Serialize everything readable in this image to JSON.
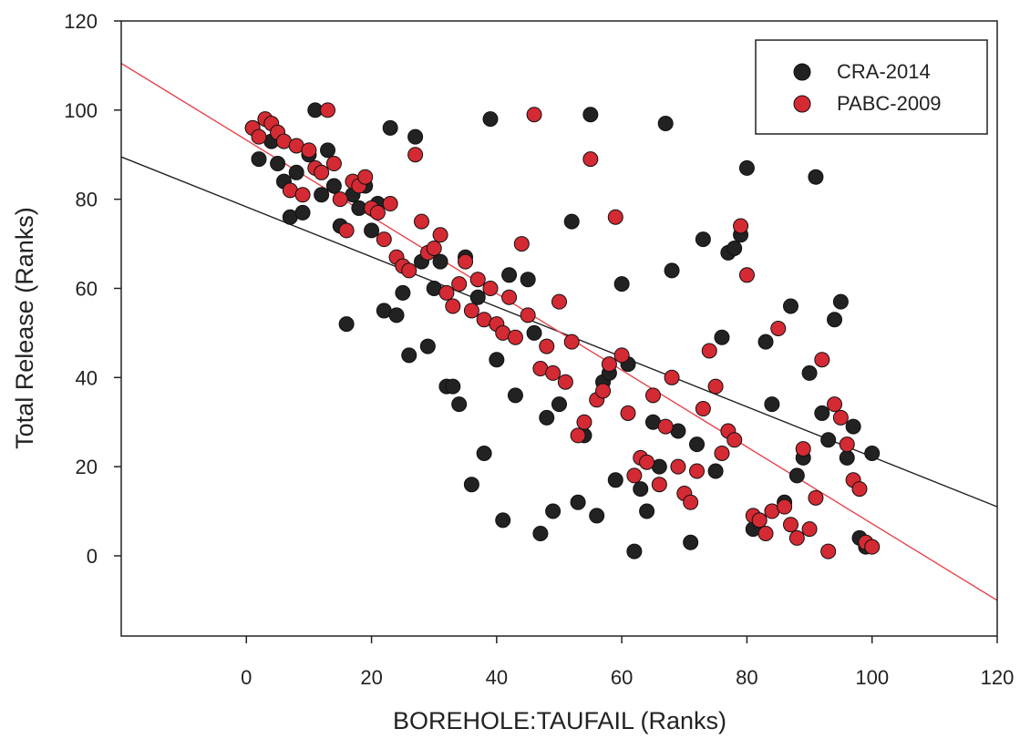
{
  "chart_data": {
    "type": "scatter",
    "xlabel": "BOREHOLE:TAUFAIL (Ranks)",
    "ylabel": "Total Release (Ranks)",
    "xlim": [
      -20,
      120
    ],
    "ylim": [
      -18,
      120
    ],
    "x_ticks": [
      0,
      20,
      40,
      60,
      80,
      100,
      120
    ],
    "y_ticks": [
      0,
      20,
      40,
      60,
      80,
      100,
      120
    ],
    "grid": false,
    "legend_position": "top-right",
    "series": [
      {
        "name": "CRA-2014",
        "color": "#222222",
        "points": [
          [
            1,
            96
          ],
          [
            2,
            89
          ],
          [
            4,
            93
          ],
          [
            5,
            88
          ],
          [
            6,
            84
          ],
          [
            7,
            76
          ],
          [
            8,
            86
          ],
          [
            9,
            77
          ],
          [
            10,
            90
          ],
          [
            11,
            100
          ],
          [
            12,
            81
          ],
          [
            13,
            91
          ],
          [
            14,
            83
          ],
          [
            15,
            74
          ],
          [
            16,
            52
          ],
          [
            17,
            81
          ],
          [
            18,
            78
          ],
          [
            19,
            83
          ],
          [
            20,
            73
          ],
          [
            21,
            79
          ],
          [
            22,
            55
          ],
          [
            23,
            96
          ],
          [
            24,
            54
          ],
          [
            25,
            59
          ],
          [
            26,
            45
          ],
          [
            27,
            94
          ],
          [
            28,
            66
          ],
          [
            29,
            47
          ],
          [
            30,
            60
          ],
          [
            31,
            66
          ],
          [
            32,
            38
          ],
          [
            33,
            38
          ],
          [
            34,
            34
          ],
          [
            35,
            67
          ],
          [
            36,
            16
          ],
          [
            37,
            58
          ],
          [
            38,
            23
          ],
          [
            39,
            98
          ],
          [
            40,
            44
          ],
          [
            41,
            8
          ],
          [
            42,
            63
          ],
          [
            43,
            36
          ],
          [
            45,
            62
          ],
          [
            46,
            50
          ],
          [
            47,
            5
          ],
          [
            48,
            31
          ],
          [
            49,
            10
          ],
          [
            50,
            34
          ],
          [
            52,
            75
          ],
          [
            53,
            12
          ],
          [
            54,
            27
          ],
          [
            55,
            99
          ],
          [
            56,
            9
          ],
          [
            57,
            39
          ],
          [
            58,
            41
          ],
          [
            59,
            17
          ],
          [
            60,
            61
          ],
          [
            61,
            43
          ],
          [
            62,
            1
          ],
          [
            63,
            15
          ],
          [
            64,
            10
          ],
          [
            65,
            30
          ],
          [
            66,
            20
          ],
          [
            67,
            97
          ],
          [
            68,
            64
          ],
          [
            69,
            28
          ],
          [
            71,
            3
          ],
          [
            72,
            25
          ],
          [
            73,
            71
          ],
          [
            75,
            19
          ],
          [
            76,
            49
          ],
          [
            77,
            68
          ],
          [
            78,
            69
          ],
          [
            79,
            72
          ],
          [
            80,
            87
          ],
          [
            81,
            6
          ],
          [
            82,
            8
          ],
          [
            83,
            48
          ],
          [
            84,
            34
          ],
          [
            86,
            12
          ],
          [
            87,
            56
          ],
          [
            88,
            18
          ],
          [
            89,
            22
          ],
          [
            90,
            41
          ],
          [
            91,
            85
          ],
          [
            92,
            32
          ],
          [
            93,
            26
          ],
          [
            94,
            53
          ],
          [
            95,
            57
          ],
          [
            96,
            22
          ],
          [
            97,
            29
          ],
          [
            98,
            4
          ],
          [
            99,
            2
          ],
          [
            100,
            23
          ]
        ]
      },
      {
        "name": "PABC-2009",
        "color": "#d42a33",
        "points": [
          [
            1,
            96
          ],
          [
            2,
            94
          ],
          [
            3,
            98
          ],
          [
            4,
            97
          ],
          [
            5,
            95
          ],
          [
            6,
            93
          ],
          [
            7,
            82
          ],
          [
            8,
            92
          ],
          [
            9,
            81
          ],
          [
            10,
            91
          ],
          [
            11,
            87
          ],
          [
            12,
            86
          ],
          [
            13,
            100
          ],
          [
            14,
            88
          ],
          [
            15,
            80
          ],
          [
            16,
            73
          ],
          [
            17,
            84
          ],
          [
            18,
            83
          ],
          [
            19,
            85
          ],
          [
            20,
            78
          ],
          [
            21,
            77
          ],
          [
            22,
            71
          ],
          [
            23,
            79
          ],
          [
            24,
            67
          ],
          [
            25,
            65
          ],
          [
            26,
            64
          ],
          [
            27,
            90
          ],
          [
            28,
            75
          ],
          [
            29,
            68
          ],
          [
            30,
            69
          ],
          [
            31,
            72
          ],
          [
            32,
            59
          ],
          [
            33,
            56
          ],
          [
            34,
            61
          ],
          [
            35,
            66
          ],
          [
            36,
            55
          ],
          [
            37,
            62
          ],
          [
            38,
            53
          ],
          [
            39,
            60
          ],
          [
            40,
            52
          ],
          [
            41,
            50
          ],
          [
            42,
            58
          ],
          [
            43,
            49
          ],
          [
            44,
            70
          ],
          [
            45,
            54
          ],
          [
            46,
            99
          ],
          [
            47,
            42
          ],
          [
            48,
            47
          ],
          [
            49,
            41
          ],
          [
            50,
            57
          ],
          [
            51,
            39
          ],
          [
            52,
            48
          ],
          [
            53,
            27
          ],
          [
            54,
            30
          ],
          [
            55,
            89
          ],
          [
            56,
            35
          ],
          [
            57,
            37
          ],
          [
            58,
            43
          ],
          [
            59,
            76
          ],
          [
            60,
            45
          ],
          [
            61,
            32
          ],
          [
            62,
            18
          ],
          [
            63,
            22
          ],
          [
            64,
            21
          ],
          [
            65,
            36
          ],
          [
            66,
            16
          ],
          [
            67,
            29
          ],
          [
            68,
            40
          ],
          [
            69,
            20
          ],
          [
            70,
            14
          ],
          [
            71,
            12
          ],
          [
            72,
            19
          ],
          [
            73,
            33
          ],
          [
            74,
            46
          ],
          [
            75,
            38
          ],
          [
            76,
            23
          ],
          [
            77,
            28
          ],
          [
            78,
            26
          ],
          [
            79,
            74
          ],
          [
            80,
            63
          ],
          [
            81,
            9
          ],
          [
            82,
            8
          ],
          [
            83,
            5
          ],
          [
            84,
            10
          ],
          [
            85,
            51
          ],
          [
            86,
            11
          ],
          [
            87,
            7
          ],
          [
            88,
            4
          ],
          [
            89,
            24
          ],
          [
            90,
            6
          ],
          [
            91,
            13
          ],
          [
            92,
            44
          ],
          [
            93,
            1
          ],
          [
            94,
            34
          ],
          [
            95,
            31
          ],
          [
            96,
            25
          ],
          [
            97,
            17
          ],
          [
            98,
            15
          ],
          [
            99,
            3
          ],
          [
            100,
            2
          ]
        ]
      }
    ],
    "regression_lines": [
      {
        "series": "CRA-2014",
        "color": "#222222",
        "x": [
          -20,
          120
        ],
        "y": [
          89.5,
          11
        ]
      },
      {
        "series": "PABC-2009",
        "color": "#e8454c",
        "x": [
          -20,
          120
        ],
        "y": [
          110.5,
          -10
        ]
      }
    ]
  }
}
